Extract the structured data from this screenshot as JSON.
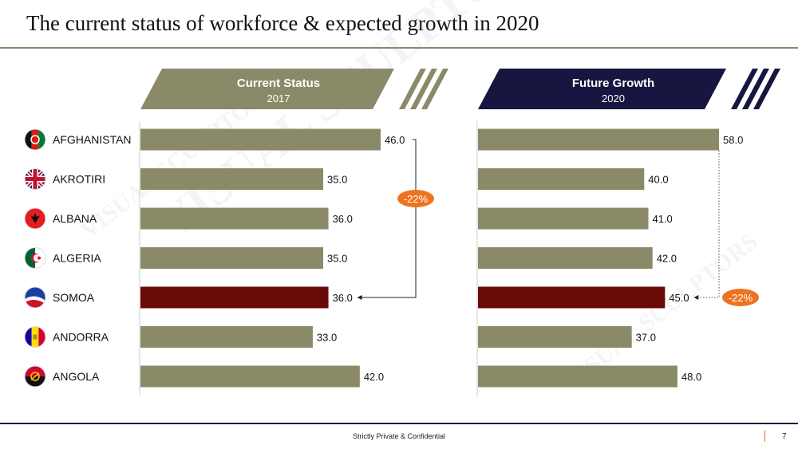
{
  "title": "The current status of workforce & expected growth in 2020",
  "footer": {
    "text": "Strictly Private & Confidential",
    "page": "7"
  },
  "watermark": "VISUAL SCULPTORS",
  "colors": {
    "bar": "#8b8a68",
    "highlight": "#6a0a06",
    "header_left": "#8b8a68",
    "header_right": "#161640",
    "callout": "#ee7320",
    "axis": "#cccccc"
  },
  "chart_data": [
    {
      "type": "bar",
      "orientation": "horizontal",
      "header": "Current Status",
      "subheader": "2017",
      "categories": [
        "AFGHANISTAN",
        "AKROTIRI",
        "ALBANA",
        "ALGERIA",
        "SOMOA",
        "ANDORRA",
        "ANGOLA"
      ],
      "values": [
        46.0,
        35.0,
        36.0,
        35.0,
        36.0,
        33.0,
        42.0
      ],
      "value_labels": [
        "46.0",
        "35.0",
        "36.0",
        "35.0",
        "36.0",
        "33.0",
        "42.0"
      ],
      "highlight_index": 4,
      "callout": {
        "label": "-22%",
        "from_category": "AFGHANISTAN",
        "to_category": "SOMOA"
      }
    },
    {
      "type": "bar",
      "orientation": "horizontal",
      "header": "Future Growth",
      "subheader": "2020",
      "categories": [
        "AFGHANISTAN",
        "AKROTIRI",
        "ALBANA",
        "ALGERIA",
        "SOMOA",
        "ANDORRA",
        "ANGOLA"
      ],
      "values": [
        58.0,
        40.0,
        41.0,
        42.0,
        45.0,
        37.0,
        48.0
      ],
      "value_labels": [
        "58.0",
        "40.0",
        "41.0",
        "42.0",
        "45.0",
        "37.0",
        "48.0"
      ],
      "highlight_index": 4,
      "callout": {
        "label": "-22%",
        "from_category": "AFGHANISTAN",
        "to_category": "SOMOA"
      }
    }
  ],
  "flags": [
    "afghanistan-flag-icon",
    "uk-flag-icon",
    "albania-flag-icon",
    "algeria-flag-icon",
    "samoa-flag-icon",
    "andorra-flag-icon",
    "angola-flag-icon"
  ]
}
